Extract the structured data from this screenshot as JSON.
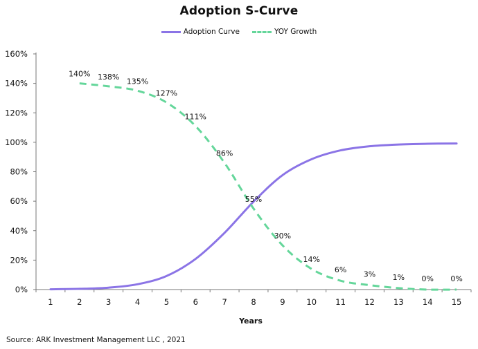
{
  "chart_data": {
    "type": "line",
    "title": "Adoption S-Curve",
    "xlabel": "Years",
    "ylabel": "",
    "x": [
      1,
      2,
      3,
      4,
      5,
      6,
      7,
      8,
      9,
      10,
      11,
      12,
      13,
      14,
      15
    ],
    "ylim": [
      0,
      160
    ],
    "yticks": [
      "0%",
      "20%",
      "40%",
      "60%",
      "80%",
      "100%",
      "120%",
      "140%",
      "160%"
    ],
    "legend_position": "top-center",
    "grid": false,
    "series": [
      {
        "name": "Adoption Curve",
        "style": "solid",
        "color": "#8b74e6",
        "x_start": 1,
        "values": [
          0.2,
          0.5,
          1.3,
          3.6,
          9.2,
          20.8,
          38.5,
          59.7,
          77.7,
          88.5,
          94.5,
          97.3,
          98.5,
          99.0,
          99.2,
          99.4,
          99.5
        ],
        "x": [
          1,
          2,
          3,
          4,
          5,
          6,
          7,
          8,
          9,
          10,
          11,
          12,
          13,
          14,
          15,
          15,
          15
        ]
      },
      {
        "name": "YOY Growth",
        "style": "dashed",
        "color": "#64d69a",
        "x": [
          2,
          3,
          4,
          5,
          6,
          7,
          8,
          9,
          10,
          11,
          12,
          13,
          14,
          15
        ],
        "values": [
          140,
          138,
          135,
          127,
          111,
          86,
          55,
          30,
          14,
          6,
          3,
          1,
          0,
          0
        ],
        "labels": [
          "140%",
          "138%",
          "135%",
          "127%",
          "111%",
          "86%",
          "55%",
          "30%",
          "14%",
          "6%",
          "3%",
          "1%",
          "0%",
          "0%"
        ]
      }
    ]
  },
  "source": "Source: ARK Investment Management LLC , 2021"
}
